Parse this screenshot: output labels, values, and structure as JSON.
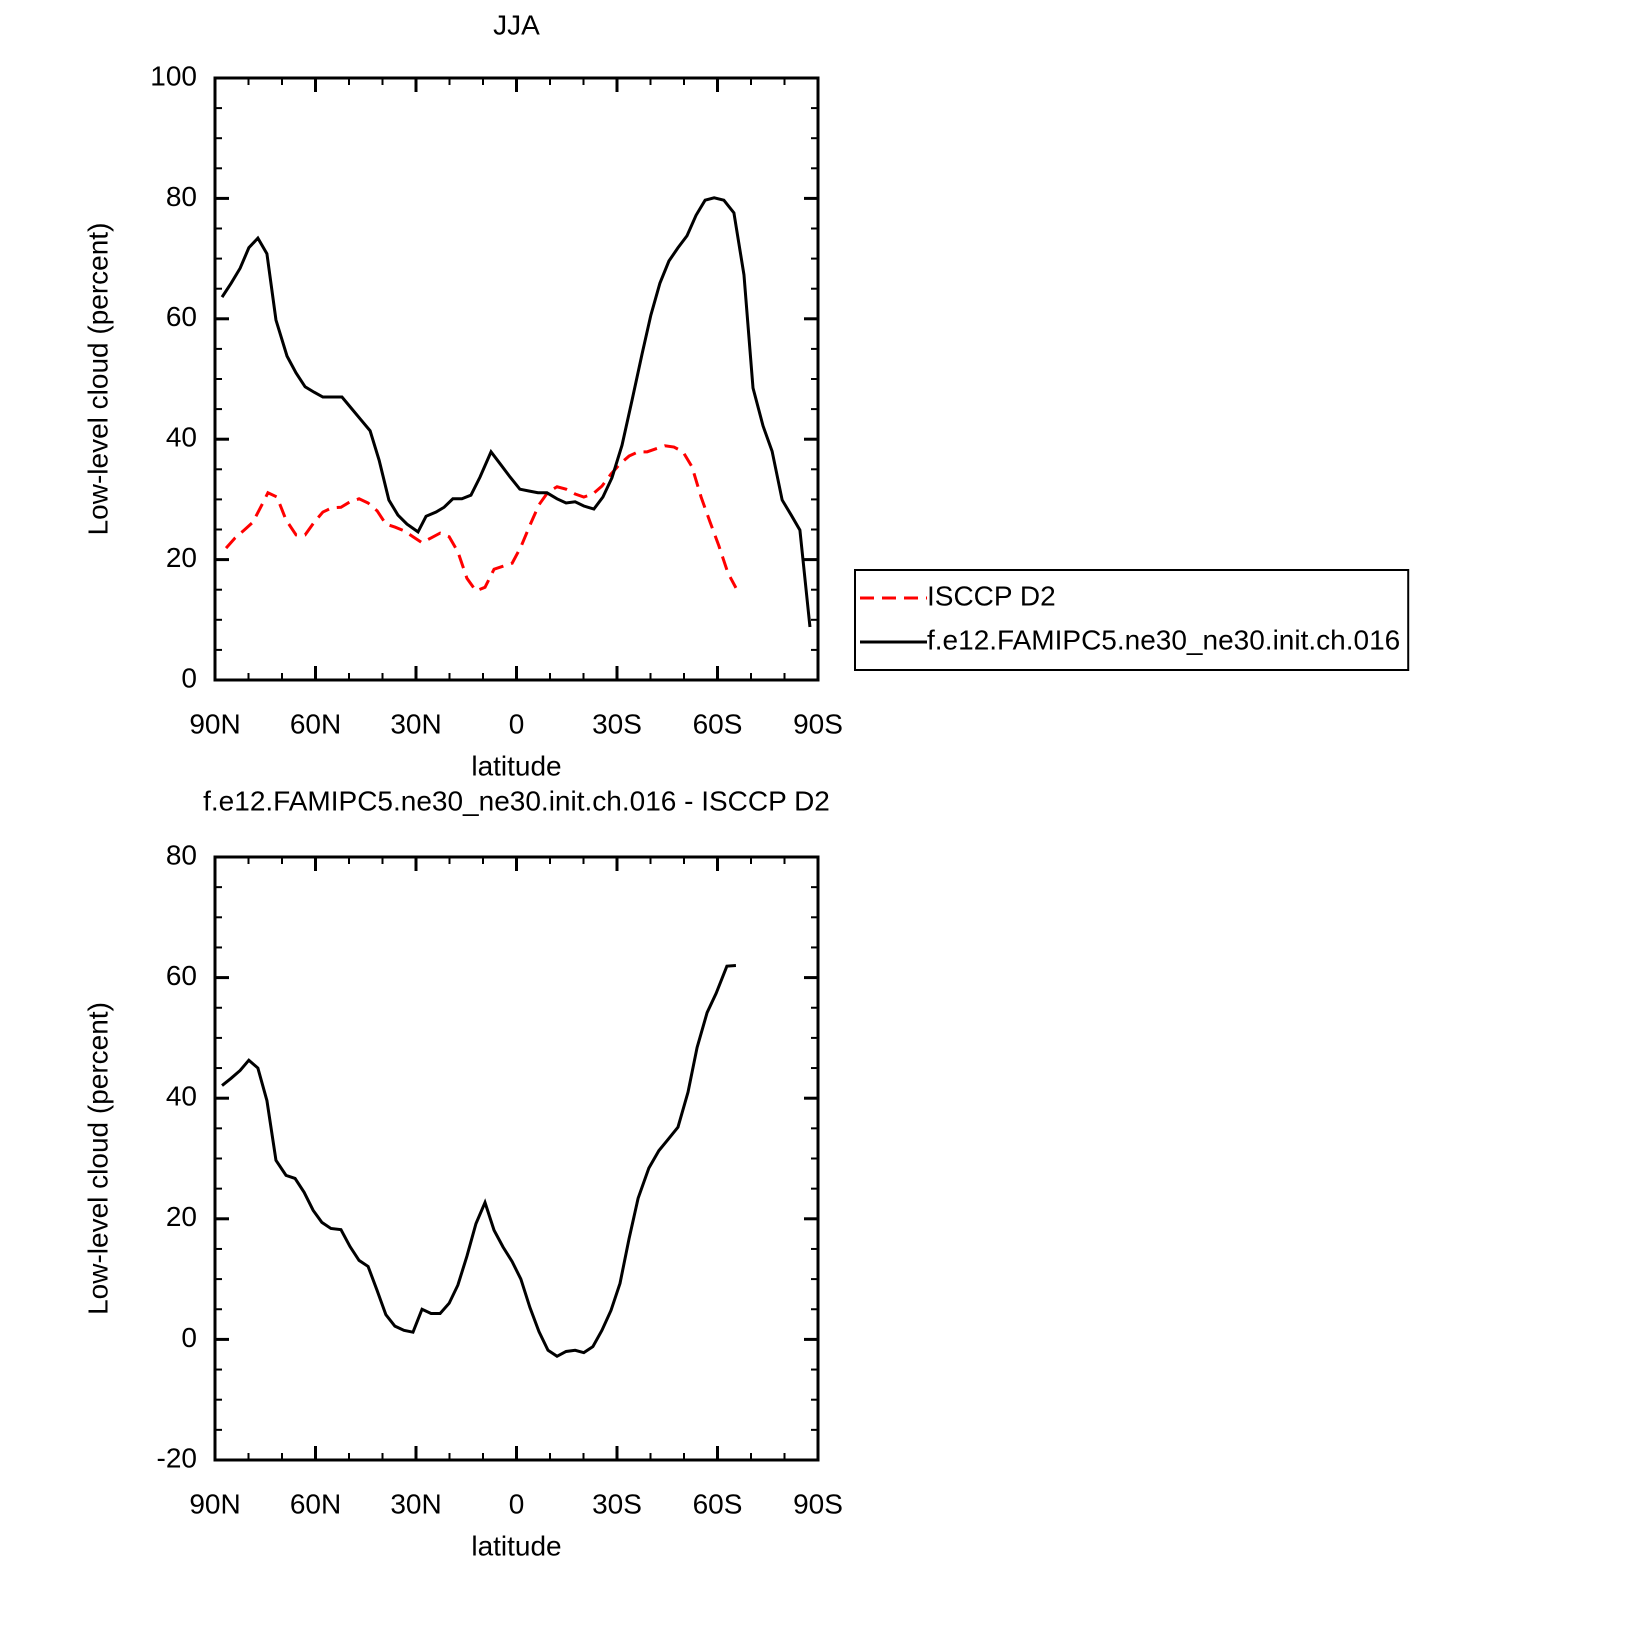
{
  "chart_data": [
    {
      "type": "line",
      "title": "JJA",
      "x_label": "latitude",
      "y_label": "Low-level cloud (percent)",
      "xlim": [
        90,
        -90
      ],
      "xticks": [
        {
          "value": 90,
          "label": "90N"
        },
        {
          "value": 60,
          "label": "60N"
        },
        {
          "value": 30,
          "label": "30N"
        },
        0,
        {
          "value": -30,
          "label": "30S"
        },
        {
          "value": -60,
          "label": "60S"
        },
        {
          "value": -90,
          "label": "90S"
        }
      ],
      "ylim": [
        0,
        100
      ],
      "yticks": [
        0,
        20,
        40,
        60,
        80,
        100
      ],
      "legend": "outside-right",
      "series": [
        {
          "name": "ISCCP D2",
          "color": "#ff0000",
          "dash": "dashed",
          "x": [
            86.7,
            84.0,
            81.3,
            78.7,
            76.0,
            74.2,
            71.5,
            68.8,
            65.8,
            63.1,
            60.4,
            57.8,
            55.1,
            52.4,
            49.7,
            47.0,
            44.3,
            41.6,
            39.0,
            36.3,
            33.6,
            30.9,
            28.2,
            25.5,
            22.8,
            20.1,
            17.5,
            14.8,
            12.1,
            9.4,
            6.7,
            4.0,
            1.3,
            -1.3,
            -4.0,
            -6.7,
            -9.4,
            -12.1,
            -14.8,
            -17.5,
            -20.1,
            -22.8,
            -25.5,
            -28.2,
            -30.9,
            -33.6,
            -36.3,
            -39.0,
            -41.6,
            -44.3,
            -47.0,
            -49.7,
            -52.4,
            -55.1,
            -57.8,
            -60.4,
            -63.1,
            -65.5
          ],
          "values": [
            21.9,
            23.6,
            24.9,
            26.2,
            29.1,
            31.1,
            30.4,
            26.6,
            24.1,
            24.1,
            26.2,
            27.9,
            28.6,
            28.7,
            29.6,
            30.1,
            29.4,
            28.1,
            25.9,
            25.4,
            24.8,
            23.8,
            22.8,
            23.6,
            24.4,
            23.8,
            21.3,
            16.9,
            14.8,
            15.4,
            18.4,
            18.9,
            19.4,
            22.1,
            25.7,
            29.1,
            31.2,
            32.1,
            31.7,
            30.9,
            30.4,
            30.9,
            32.2,
            34.2,
            35.9,
            37.2,
            37.9,
            37.9,
            38.4,
            38.9,
            38.7,
            37.9,
            35.4,
            30.4,
            26.2,
            22.3,
            17.8,
            15.3
          ]
        },
        {
          "name": "f.e12.FAMIPC5.ne30_ne30.init.ch.016",
          "color": "#000000",
          "dash": "solid",
          "x": [
            87.9,
            85.2,
            82.5,
            79.9,
            77.2,
            74.5,
            71.8,
            68.5,
            65.8,
            63.1,
            60.4,
            57.8,
            55.1,
            52.1,
            49.4,
            46.4,
            43.7,
            41.0,
            38.1,
            35.4,
            32.7,
            29.4,
            27.0,
            24.0,
            21.6,
            19.0,
            16.3,
            13.6,
            10.9,
            7.6,
            4.6,
            1.9,
            -1.0,
            -3.7,
            -6.4,
            -9.1,
            -12.1,
            -14.8,
            -17.5,
            -20.1,
            -23.1,
            -25.8,
            -28.5,
            -31.5,
            -34.5,
            -37.5,
            -40.1,
            -42.8,
            -45.5,
            -48.2,
            -50.9,
            -53.6,
            -56.3,
            -59.0,
            -61.9,
            -64.9,
            -67.9,
            -70.6,
            -73.6,
            -76.3,
            -79.3,
            -82.0,
            -84.6,
            -87.6
          ],
          "values": [
            63.6,
            65.9,
            68.4,
            71.8,
            73.4,
            70.8,
            59.8,
            53.8,
            51.0,
            48.7,
            47.8,
            47.0,
            47.0,
            47.0,
            45.2,
            43.2,
            41.4,
            36.5,
            29.9,
            27.4,
            25.9,
            24.6,
            27.2,
            27.9,
            28.7,
            30.1,
            30.1,
            30.7,
            33.7,
            37.9,
            35.7,
            33.7,
            31.7,
            31.4,
            31.1,
            31.1,
            30.1,
            29.4,
            29.6,
            28.9,
            28.4,
            30.4,
            33.6,
            39.0,
            46.5,
            54.2,
            60.6,
            65.9,
            69.6,
            71.8,
            73.8,
            77.2,
            79.7,
            80.1,
            79.7,
            77.6,
            67.3,
            48.5,
            42.2,
            38.0,
            29.9,
            27.4,
            24.9,
            8.8
          ]
        }
      ]
    },
    {
      "type": "line",
      "title": "f.e12.FAMIPC5.ne30_ne30.init.ch.016 - ISCCP D2",
      "x_label": "latitude",
      "y_label": "Low-level cloud (percent)",
      "xlim": [
        90,
        -90
      ],
      "xticks": [
        {
          "value": 90,
          "label": "90N"
        },
        {
          "value": 60,
          "label": "60N"
        },
        {
          "value": 30,
          "label": "30N"
        },
        0,
        {
          "value": -30,
          "label": "30S"
        },
        {
          "value": -60,
          "label": "60S"
        },
        {
          "value": -90,
          "label": "90S"
        }
      ],
      "ylim": [
        -20,
        80
      ],
      "yticks": [
        -20,
        0,
        20,
        40,
        60,
        80
      ],
      "color": "#000000",
      "x": [
        87.9,
        85.2,
        82.5,
        79.9,
        77.2,
        74.5,
        71.8,
        68.8,
        66.1,
        63.4,
        60.7,
        58.1,
        55.4,
        52.4,
        49.7,
        47.0,
        44.3,
        41.6,
        39.0,
        36.3,
        33.6,
        30.9,
        28.2,
        25.5,
        22.8,
        20.1,
        17.5,
        14.8,
        12.1,
        9.4,
        6.7,
        4.0,
        1.3,
        -1.3,
        -4.0,
        -6.7,
        -9.4,
        -12.1,
        -14.8,
        -17.5,
        -20.1,
        -22.8,
        -25.5,
        -28.2,
        -30.9,
        -33.6,
        -36.3,
        -39.5,
        -42.5,
        -45.0,
        -48.2,
        -51.2,
        -53.9,
        -56.9,
        -59.6,
        -62.8,
        -65.5
      ],
      "values": [
        42.1,
        43.3,
        44.6,
        46.3,
        45.0,
        39.6,
        29.7,
        27.2,
        26.7,
        24.4,
        21.4,
        19.4,
        18.4,
        18.2,
        15.4,
        13.1,
        12.1,
        8.1,
        4.1,
        2.2,
        1.5,
        1.2,
        5.0,
        4.3,
        4.3,
        6.0,
        9.0,
        13.8,
        19.2,
        22.7,
        18.1,
        15.3,
        12.9,
        10.0,
        5.3,
        1.3,
        -1.8,
        -2.8,
        -2.0,
        -1.8,
        -2.2,
        -1.2,
        1.5,
        4.8,
        9.3,
        16.7,
        23.4,
        28.4,
        31.3,
        33.0,
        35.2,
        41.0,
        48.4,
        54.2,
        57.4,
        61.9,
        62.0
      ]
    }
  ]
}
